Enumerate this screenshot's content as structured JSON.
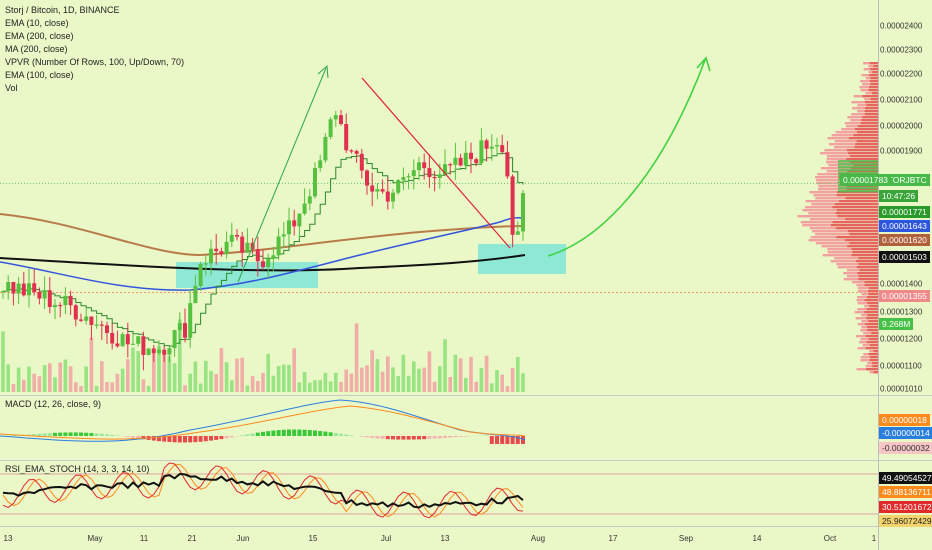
{
  "legend": {
    "symbol": "Storj / Bitcoin, 1D, BINANCE",
    "indicators": [
      "EMA (10, close)",
      "EMA (200, close)",
      "MA (200, close)",
      "VPVR (Number Of Rows, 100, Up/Down, 70)",
      "EMA (100, close)",
      "Vol"
    ]
  },
  "macd": {
    "title": "MACD (12, 26, close, 9)"
  },
  "rsi": {
    "title": "RSI_EMA_STOCH (14, 3, 3, 14, 10)"
  },
  "colors": {
    "background": "#eaf7c7",
    "up": "#56c13e",
    "down": "#e0304f",
    "ema10": "#2a8a2a",
    "ema200": "#b87c4a",
    "ma200": "#111111",
    "ema100": "#3355dd"
  },
  "chart_data": [
    {
      "type": "line",
      "title": "Storj / Bitcoin, 1D, BINANCE",
      "x": [
        "2020-04-13",
        "2020-05-01",
        "2020-05-11",
        "2020-05-21",
        "2020-06-01",
        "2020-06-15",
        "2020-06-22",
        "2020-07-01",
        "2020-07-13",
        "2020-07-20",
        "2020-07-28"
      ],
      "series": [
        {
          "name": "STORJBTC",
          "values": [
            1.39e-05,
            1.25e-05,
            1.15e-05,
            1.22e-05,
            1.56e-05,
            2.12e-05,
            1.86e-05,
            1.87e-05,
            1.96e-05,
            1.96e-05,
            1.783e-05
          ]
        }
      ],
      "ylim": [
        1.01e-05,
        2.46e-05
      ],
      "y_ticks": [
        "0.00002400",
        "0.00002300",
        "0.00002200",
        "0.00002100",
        "0.00002000",
        "0.00001900",
        "0.00001400",
        "0.00001300",
        "0.00001200",
        "0.00001100",
        "0.00001010"
      ],
      "x_ticks": [
        "13",
        "May",
        "11",
        "21",
        "Jun",
        "15",
        "Jul",
        "13",
        "Aug",
        "17",
        "Sep",
        "14",
        "Oct",
        "1"
      ],
      "price_badges": [
        {
          "label": "STORJBTC",
          "value": "0.00001783"
        },
        {
          "value": "10:47:26"
        },
        {
          "value": "0.00001771"
        },
        {
          "value": "0.00001643"
        },
        {
          "value": "0.00001620"
        },
        {
          "value": "0.00001503"
        },
        {
          "value": "0.00001355"
        },
        {
          "value": "9.268M"
        }
      ]
    },
    {
      "type": "bar",
      "title": "MACD (12, 26, close, 9)",
      "values_badges": [
        "0.00000018",
        "-0.00000014",
        "-0.00000032"
      ]
    },
    {
      "type": "line",
      "title": "RSI_EMA_STOCH (14, 3, 3, 14, 10)",
      "values_badges": [
        "49.49054527",
        "48.88136711",
        "30.51201672",
        "25.96072429"
      ]
    }
  ]
}
